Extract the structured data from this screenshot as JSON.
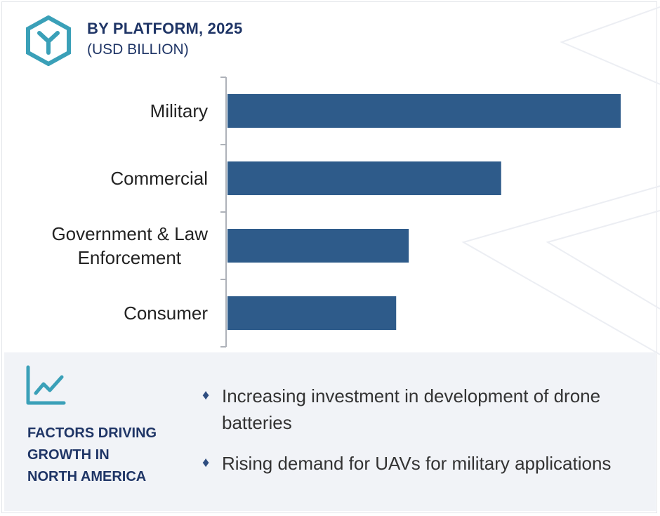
{
  "header": {
    "title": "BY PLATFORM, 2025",
    "subtitle": "(USD BILLION)"
  },
  "colors": {
    "bar": "#2e5b8a",
    "accent": "#3aa0b8",
    "heading": "#1f3566"
  },
  "icons": {
    "logo": "hexagon-y-logo-icon",
    "trend": "line-chart-icon",
    "bullet": "diamond-bullet-icon"
  },
  "chart_data": {
    "type": "bar",
    "orientation": "horizontal",
    "title": "BY PLATFORM, 2025",
    "subtitle": "(USD BILLION)",
    "categories": [
      "Military",
      "Commercial",
      "Government & Law Enforcement",
      "Consumer"
    ],
    "values": [
      100,
      69.6,
      46.1,
      42.9
    ],
    "xlim": [
      0,
      100
    ],
    "value_axis_shown": false,
    "grid": false,
    "legend": "none"
  },
  "factors": {
    "title": "FACTORS DRIVING\nGROWTH IN\nNORTH AMERICA",
    "bullet_symbol": "♦",
    "items": [
      "Increasing investment in development of drone batteries",
      "Rising demand for UAVs for military applications"
    ]
  }
}
